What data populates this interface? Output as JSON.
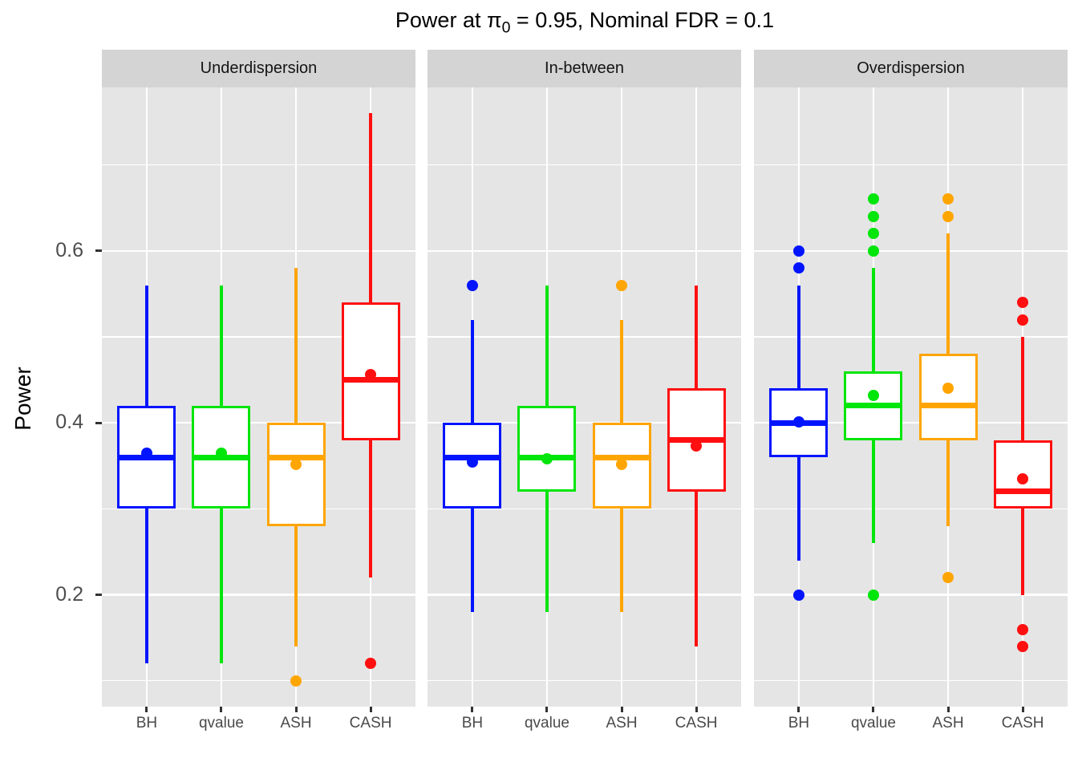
{
  "title": {
    "prefix": "Power at ",
    "pi": "π",
    "pi_sub": "0",
    "suffix": " = 0.95, Nominal FDR = 0.1"
  },
  "colors": {
    "blue": "#0014ff",
    "green": "#00e50a",
    "orange": "#ffa500",
    "red": "#ff0f0f"
  },
  "chart_data": {
    "type": "boxplot",
    "title": "Power at π_0 = 0.95, Nominal FDR = 0.1",
    "ylabel": "Power",
    "xlabel": "",
    "legend": "none",
    "grid": "on",
    "ylim": [
      0.07,
      0.79
    ],
    "y_ticks": [
      {
        "label": "0.2",
        "value": 0.2
      },
      {
        "label": "0.4",
        "value": 0.4
      },
      {
        "label": "0.6",
        "value": 0.6
      }
    ],
    "y_minor_gridlines": [
      0.1,
      0.3,
      0.5,
      0.7
    ],
    "categories": [
      "BH",
      "qvalue",
      "ASH",
      "CASH"
    ],
    "facets": [
      {
        "label": "Underdispersion",
        "boxes": [
          {
            "method": "BH",
            "color": "blue",
            "whisker_lo": 0.12,
            "q1": 0.3,
            "median": 0.36,
            "q3": 0.42,
            "whisker_hi": 0.56,
            "mean": 0.365,
            "outliers": []
          },
          {
            "method": "qvalue",
            "color": "green",
            "whisker_lo": 0.12,
            "q1": 0.3,
            "median": 0.36,
            "q3": 0.42,
            "whisker_hi": 0.56,
            "mean": 0.365,
            "outliers": []
          },
          {
            "method": "ASH",
            "color": "orange",
            "whisker_lo": 0.14,
            "q1": 0.28,
            "median": 0.36,
            "q3": 0.4,
            "whisker_hi": 0.58,
            "mean": 0.352,
            "outliers": [
              0.1
            ]
          },
          {
            "method": "CASH",
            "color": "red",
            "whisker_lo": 0.22,
            "q1": 0.38,
            "median": 0.45,
            "q3": 0.54,
            "whisker_hi": 0.76,
            "mean": 0.456,
            "outliers": [
              0.12
            ]
          }
        ]
      },
      {
        "label": "In-between",
        "boxes": [
          {
            "method": "BH",
            "color": "blue",
            "whisker_lo": 0.18,
            "q1": 0.3,
            "median": 0.36,
            "q3": 0.4,
            "whisker_hi": 0.52,
            "mean": 0.354,
            "outliers": [
              0.56
            ]
          },
          {
            "method": "qvalue",
            "color": "green",
            "whisker_lo": 0.18,
            "q1": 0.32,
            "median": 0.36,
            "q3": 0.42,
            "whisker_hi": 0.56,
            "mean": 0.358,
            "outliers": []
          },
          {
            "method": "ASH",
            "color": "orange",
            "whisker_lo": 0.18,
            "q1": 0.3,
            "median": 0.36,
            "q3": 0.4,
            "whisker_hi": 0.52,
            "mean": 0.352,
            "outliers": [
              0.56
            ]
          },
          {
            "method": "CASH",
            "color": "red",
            "whisker_lo": 0.14,
            "q1": 0.32,
            "median": 0.38,
            "q3": 0.44,
            "whisker_hi": 0.56,
            "mean": 0.373,
            "outliers": []
          }
        ]
      },
      {
        "label": "Overdispersion",
        "boxes": [
          {
            "method": "BH",
            "color": "blue",
            "whisker_lo": 0.24,
            "q1": 0.36,
            "median": 0.4,
            "q3": 0.44,
            "whisker_hi": 0.56,
            "mean": 0.401,
            "outliers": [
              0.6,
              0.58,
              0.2
            ]
          },
          {
            "method": "qvalue",
            "color": "green",
            "whisker_lo": 0.26,
            "q1": 0.38,
            "median": 0.42,
            "q3": 0.46,
            "whisker_hi": 0.58,
            "mean": 0.432,
            "outliers": [
              0.66,
              0.64,
              0.62,
              0.6,
              0.2
            ]
          },
          {
            "method": "ASH",
            "color": "orange",
            "whisker_lo": 0.28,
            "q1": 0.38,
            "median": 0.42,
            "q3": 0.48,
            "whisker_hi": 0.62,
            "mean": 0.44,
            "outliers": [
              0.66,
              0.64,
              0.22
            ]
          },
          {
            "method": "CASH",
            "color": "red",
            "whisker_lo": 0.2,
            "q1": 0.3,
            "median": 0.32,
            "q3": 0.38,
            "whisker_hi": 0.5,
            "mean": 0.335,
            "outliers": [
              0.54,
              0.52,
              0.16,
              0.14
            ]
          }
        ]
      }
    ]
  }
}
